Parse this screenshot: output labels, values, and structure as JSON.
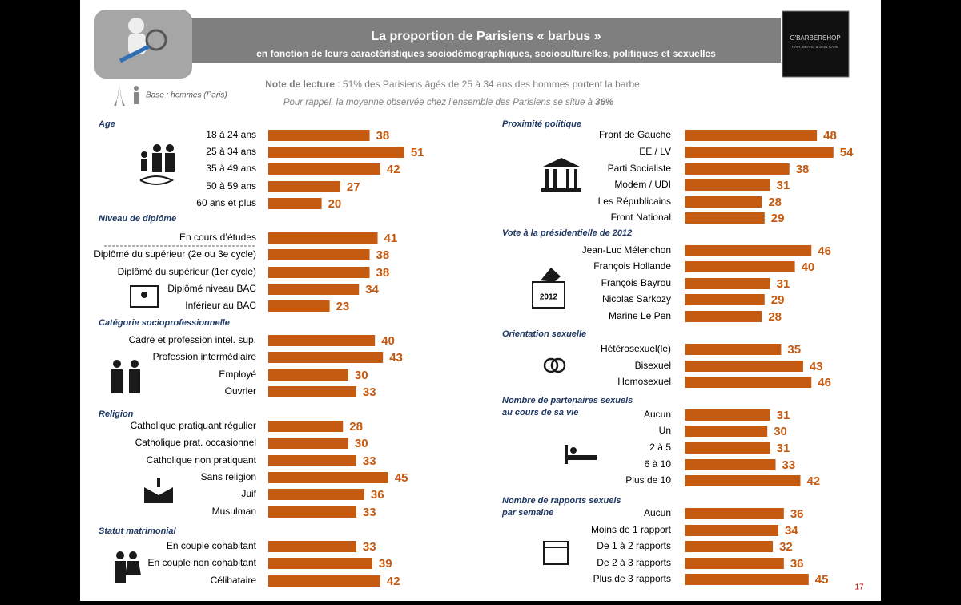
{
  "header": {
    "title": "La proportion de Parisiens « barbus »",
    "subtitle": "en fonction de leurs caractéristiques sociodémographiques, socioculturelles, politiques et sexuelles",
    "logo_name": "O'BARBERSHOP",
    "logo_tagline": "HAIR, BEARD & SKIN CARE"
  },
  "note": {
    "label": "Note de lecture",
    "text": " : 51% des Parisiens âgés de 25 à 34 ans des hommes portent la barbe",
    "reminder": "Pour rappel, la moyenne observée chez l’ensemble des Parisiens se situe à ",
    "reminder_value": "36%"
  },
  "base": "Base : hommes (Paris)",
  "ballot_year": "2012",
  "page_number": "17",
  "left": [
    {
      "title": [
        "Age"
      ],
      "items": [
        {
          "label": "18 à 24 ans",
          "value": 38
        },
        {
          "label": "25 à 34 ans",
          "value": 51
        },
        {
          "label": "35 à 49 ans",
          "value": 42
        },
        {
          "label": "50 à 59 ans",
          "value": 27
        },
        {
          "label": "60 ans et plus",
          "value": 20
        }
      ]
    },
    {
      "title": [
        "Niveau de diplôme"
      ],
      "items": [
        {
          "label": "En cours d’études",
          "value": 41
        },
        {
          "label": "Diplômé du supérieur (2e ou 3e cycle)",
          "value": 38
        },
        {
          "label": "Diplômé du supérieur (1er cycle)",
          "value": 38
        },
        {
          "label": "Diplômé niveau BAC",
          "value": 34
        },
        {
          "label": "Inférieur au BAC",
          "value": 23
        }
      ]
    },
    {
      "title": [
        "Catégorie socioprofessionnelle"
      ],
      "items": [
        {
          "label": "Cadre et profession intel. sup.",
          "value": 40
        },
        {
          "label": "Profession intermédiaire",
          "value": 43
        },
        {
          "label": "Employé",
          "value": 30
        },
        {
          "label": "Ouvrier",
          "value": 33
        }
      ]
    },
    {
      "title": [
        "Religion"
      ],
      "items": [
        {
          "label": "Catholique pratiquant régulier",
          "value": 28
        },
        {
          "label": "Catholique prat. occasionnel",
          "value": 30
        },
        {
          "label": "Catholique non pratiquant",
          "value": 33
        },
        {
          "label": "Sans religion",
          "value": 45
        },
        {
          "label": "Juif",
          "value": 36
        },
        {
          "label": "Musulman",
          "value": 33
        }
      ]
    },
    {
      "title": [
        "Statut matrimonial"
      ],
      "items": [
        {
          "label": "En couple cohabitant",
          "value": 33
        },
        {
          "label": "En couple  non cohabitant",
          "value": 39
        },
        {
          "label": "Célibataire",
          "value": 42
        }
      ]
    }
  ],
  "right": [
    {
      "title": [
        "Proximité politique"
      ],
      "items": [
        {
          "label": "Front de Gauche",
          "value": 48
        },
        {
          "label": "EE / LV",
          "value": 54
        },
        {
          "label": "Parti Socialiste",
          "value": 38
        },
        {
          "label": "Modem / UDI",
          "value": 31
        },
        {
          "label": "Les Républicains",
          "value": 28
        },
        {
          "label": "Front National",
          "value": 29
        }
      ]
    },
    {
      "title": [
        "Vote à la présidentielle de 2012"
      ],
      "items": [
        {
          "label": "Jean-Luc Mélenchon",
          "value": 46
        },
        {
          "label": "François Hollande",
          "value": 40
        },
        {
          "label": "François Bayrou",
          "value": 31
        },
        {
          "label": "Nicolas Sarkozy",
          "value": 29
        },
        {
          "label": "Marine Le Pen",
          "value": 28
        }
      ]
    },
    {
      "title": [
        "Orientation sexuelle"
      ],
      "items": [
        {
          "label": "Hétérosexuel(le)",
          "value": 35
        },
        {
          "label": "Bisexuel",
          "value": 43
        },
        {
          "label": "Homosexuel",
          "value": 46
        }
      ]
    },
    {
      "title": [
        "Nombre de partenaires sexuels",
        "au cours de sa vie"
      ],
      "items": [
        {
          "label": "Aucun",
          "value": 31
        },
        {
          "label": "Un",
          "value": 30
        },
        {
          "label": "2 à 5",
          "value": 31
        },
        {
          "label": "6 à 10",
          "value": 33
        },
        {
          "label": "Plus de 10",
          "value": 42
        }
      ]
    },
    {
      "title": [
        "Nombre de rapports sexuels",
        "par semaine"
      ],
      "items": [
        {
          "label": "Aucun",
          "value": 36
        },
        {
          "label": "Moins de 1 rapport",
          "value": 34
        },
        {
          "label": "De 1 à 2 rapports",
          "value": 32
        },
        {
          "label": "De 2 à 3 rapports",
          "value": 36
        },
        {
          "label": "Plus de 3 rapports",
          "value": 45
        }
      ]
    }
  ]
}
